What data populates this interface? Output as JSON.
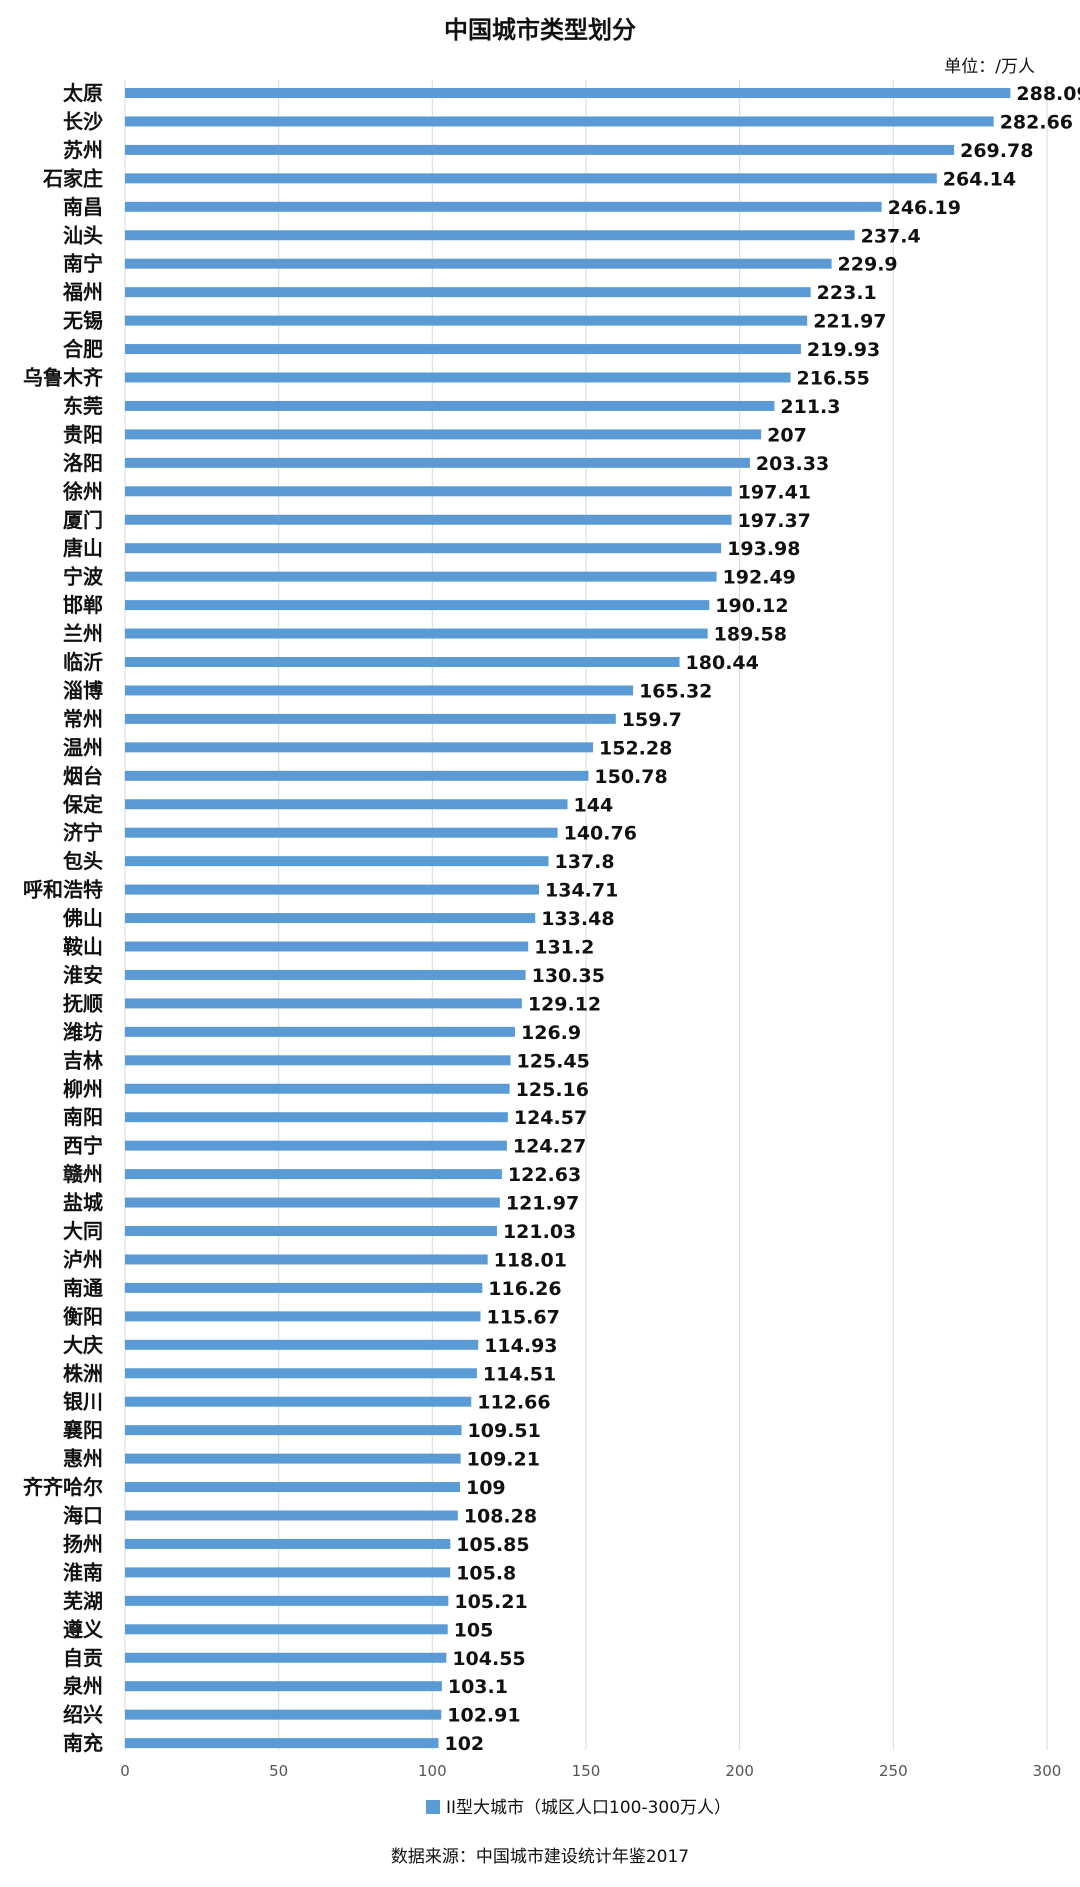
{
  "chart_data": {
    "type": "bar",
    "orientation": "horizontal",
    "title": "中国城市类型划分",
    "unit": "单位：/万人",
    "xlim": [
      0,
      300
    ],
    "xticks": [
      0,
      50,
      100,
      150,
      200,
      250,
      300
    ],
    "grid": true,
    "legend_position": "bottom",
    "source": "数据来源：中国城市建设统计年鉴2017",
    "bar_color": "#5b9bd5",
    "series": [
      {
        "name": "II型大城市（城区人口100-300万人）",
        "values": [
          288.09,
          282.66,
          269.78,
          264.14,
          246.19,
          237.4,
          229.9,
          223.1,
          221.97,
          219.93,
          216.55,
          211.3,
          207,
          203.33,
          197.41,
          197.37,
          193.98,
          192.49,
          190.12,
          189.58,
          180.44,
          165.32,
          159.7,
          152.28,
          150.78,
          144,
          140.76,
          137.8,
          134.71,
          133.48,
          131.2,
          130.35,
          129.12,
          126.9,
          125.45,
          125.16,
          124.57,
          124.27,
          122.63,
          121.97,
          121.03,
          118.01,
          116.26,
          115.67,
          114.93,
          114.51,
          112.66,
          109.51,
          109.21,
          109,
          108.28,
          105.85,
          105.8,
          105.21,
          105,
          104.55,
          103.1,
          102.91,
          102
        ],
        "value_labels": [
          "288.09",
          "282.66",
          "269.78",
          "264.14",
          "246.19",
          "237.4",
          "229.9",
          "223.1",
          "221.97",
          "219.93",
          "216.55",
          "211.3",
          "207",
          "203.33",
          "197.41",
          "197.37",
          "193.98",
          "192.49",
          "190.12",
          "189.58",
          "180.44",
          "165.32",
          "159.7",
          "152.28",
          "150.78",
          "144",
          "140.76",
          "137.8",
          "134.71",
          "133.48",
          "131.2",
          "130.35",
          "129.12",
          "126.9",
          "125.45",
          "125.16",
          "124.57",
          "124.27",
          "122.63",
          "121.97",
          "121.03",
          "118.01",
          "116.26",
          "115.67",
          "114.93",
          "114.51",
          "112.66",
          "109.51",
          "109.21",
          "109",
          "108.28",
          "105.85",
          "105.8",
          "105.21",
          "105",
          "104.55",
          "103.1",
          "102.91",
          "102"
        ]
      }
    ],
    "categories": [
      "太原",
      "长沙",
      "苏州",
      "石家庄",
      "南昌",
      "汕头",
      "南宁",
      "福州",
      "无锡",
      "合肥",
      "乌鲁木齐",
      "东莞",
      "贵阳",
      "洛阳",
      "徐州",
      "厦门",
      "唐山",
      "宁波",
      "邯郸",
      "兰州",
      "临沂",
      "淄博",
      "常州",
      "温州",
      "烟台",
      "保定",
      "济宁",
      "包头",
      "呼和浩特",
      "佛山",
      "鞍山",
      "淮安",
      "抚顺",
      "潍坊",
      "吉林",
      "柳州",
      "南阳",
      "西宁",
      "赣州",
      "盐城",
      "大同",
      "泸州",
      "南通",
      "衡阳",
      "大庆",
      "株洲",
      "银川",
      "襄阳",
      "惠州",
      "齐齐哈尔",
      "海口",
      "扬州",
      "淮南",
      "芜湖",
      "遵义",
      "自贡",
      "泉州",
      "绍兴",
      "南充"
    ]
  }
}
